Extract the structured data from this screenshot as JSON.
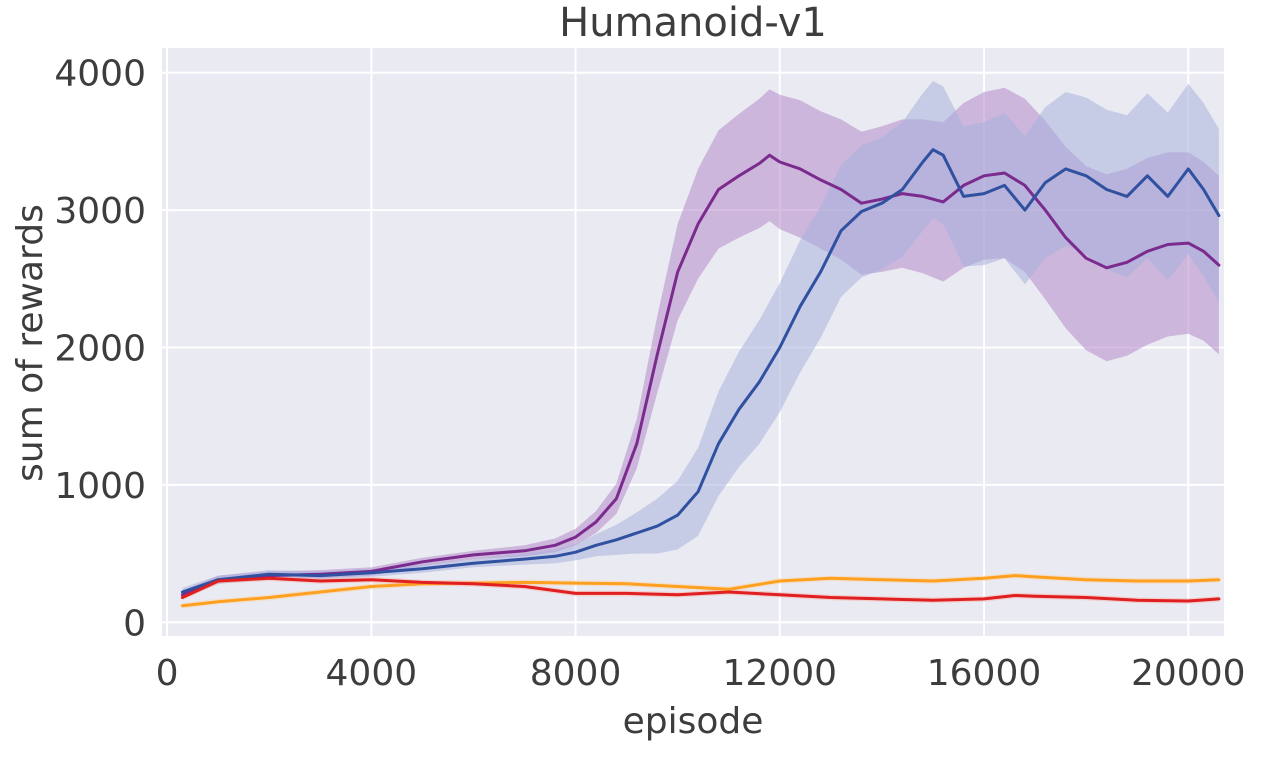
{
  "chart_data": {
    "type": "line",
    "title": "Humanoid-v1",
    "xlabel": "episode",
    "ylabel": "sum of rewards",
    "xlim": [
      -100,
      20700
    ],
    "ylim": [
      -100,
      4180
    ],
    "x_ticks": [
      0,
      4000,
      8000,
      12000,
      16000,
      20000
    ],
    "x_tick_labels": [
      "0",
      "4000",
      "8000",
      "12000",
      "16000",
      "20000"
    ],
    "y_ticks": [
      0,
      1000,
      2000,
      3000,
      4000
    ],
    "y_tick_labels": [
      "0",
      "1000",
      "2000",
      "3000",
      "4000"
    ],
    "grid": true,
    "background": "#eaeaf2",
    "series": [
      {
        "color": "#7b2a8e",
        "band_color": "#b48ac8",
        "x": [
          300,
          1000,
          2000,
          3000,
          4000,
          5000,
          6000,
          7000,
          7600,
          8000,
          8400,
          8800,
          9200,
          9600,
          10000,
          10400,
          10800,
          11200,
          11600,
          11800,
          12000,
          12400,
          12800,
          13200,
          13600,
          14000,
          14400,
          14800,
          15200,
          15600,
          16000,
          16400,
          16800,
          17200,
          17600,
          18000,
          18400,
          18800,
          19200,
          19600,
          20000,
          20300,
          20600
        ],
        "values": [
          200,
          310,
          340,
          350,
          370,
          440,
          490,
          520,
          560,
          620,
          730,
          900,
          1300,
          1950,
          2550,
          2900,
          3150,
          3250,
          3340,
          3400,
          3350,
          3300,
          3220,
          3150,
          3050,
          3080,
          3120,
          3100,
          3060,
          3180,
          3250,
          3270,
          3180,
          3000,
          2800,
          2650,
          2580,
          2620,
          2700,
          2750,
          2760,
          2700,
          2600
        ],
        "band_halfwidth": [
          30,
          30,
          30,
          30,
          30,
          30,
          30,
          40,
          50,
          60,
          80,
          110,
          180,
          280,
          350,
          400,
          430,
          450,
          470,
          480,
          490,
          500,
          500,
          510,
          520,
          530,
          540,
          560,
          580,
          600,
          610,
          620,
          630,
          650,
          660,
          670,
          680,
          680,
          680,
          670,
          660,
          650,
          650
        ]
      },
      {
        "color": "#3050a0",
        "band_color": "#a8b1dc",
        "x": [
          300,
          1000,
          2000,
          3000,
          4000,
          5000,
          6000,
          7000,
          7600,
          8000,
          8400,
          8800,
          9200,
          9600,
          10000,
          10400,
          10800,
          11200,
          11600,
          12000,
          12400,
          12800,
          13200,
          13600,
          14000,
          14400,
          14800,
          15000,
          15200,
          15600,
          16000,
          16400,
          16800,
          17200,
          17600,
          18000,
          18400,
          18800,
          19200,
          19600,
          20000,
          20300,
          20600
        ],
        "values": [
          220,
          310,
          350,
          340,
          360,
          390,
          430,
          460,
          480,
          510,
          560,
          600,
          650,
          700,
          780,
          950,
          1300,
          1550,
          1750,
          2000,
          2300,
          2550,
          2850,
          2990,
          3050,
          3150,
          3350,
          3440,
          3400,
          3100,
          3120,
          3180,
          3000,
          3200,
          3300,
          3250,
          3150,
          3100,
          3250,
          3100,
          3300,
          3150,
          2960
        ],
        "band_halfwidth": [
          30,
          30,
          30,
          30,
          30,
          30,
          30,
          40,
          50,
          60,
          80,
          110,
          150,
          200,
          250,
          320,
          380,
          420,
          450,
          470,
          480,
          480,
          480,
          480,
          480,
          490,
          500,
          500,
          500,
          510,
          520,
          530,
          540,
          550,
          560,
          570,
          580,
          590,
          600,
          610,
          620,
          630,
          630
        ]
      },
      {
        "color": "#ffa020",
        "band_color": "#f7d5ac",
        "x": [
          300,
          1000,
          2000,
          3000,
          4000,
          5000,
          6000,
          7000,
          8000,
          9000,
          10000,
          11000,
          12000,
          13000,
          14000,
          15000,
          16000,
          16600,
          17000,
          18000,
          19000,
          20000,
          20600
        ],
        "values": [
          120,
          150,
          180,
          220,
          260,
          280,
          285,
          290,
          285,
          280,
          260,
          240,
          300,
          320,
          310,
          300,
          320,
          340,
          330,
          310,
          300,
          300,
          310
        ],
        "band_halfwidth": [
          20,
          20,
          20,
          20,
          20,
          20,
          20,
          20,
          20,
          20,
          20,
          20,
          20,
          20,
          20,
          20,
          20,
          20,
          20,
          20,
          20,
          20,
          20
        ]
      },
      {
        "color": "#e02020",
        "band_color": "#f4b8b0",
        "x": [
          300,
          1000,
          2000,
          3000,
          4000,
          5000,
          6000,
          7000,
          8000,
          9000,
          10000,
          11000,
          12000,
          13000,
          14000,
          15000,
          16000,
          16600,
          17000,
          18000,
          19000,
          20000,
          20600
        ],
        "values": [
          180,
          300,
          320,
          300,
          310,
          290,
          280,
          260,
          210,
          210,
          200,
          220,
          200,
          180,
          170,
          160,
          170,
          195,
          190,
          180,
          160,
          155,
          170
        ],
        "band_halfwidth": [
          20,
          20,
          20,
          20,
          20,
          20,
          20,
          20,
          20,
          20,
          20,
          20,
          20,
          20,
          20,
          20,
          20,
          20,
          20,
          20,
          20,
          20,
          20
        ]
      }
    ]
  }
}
